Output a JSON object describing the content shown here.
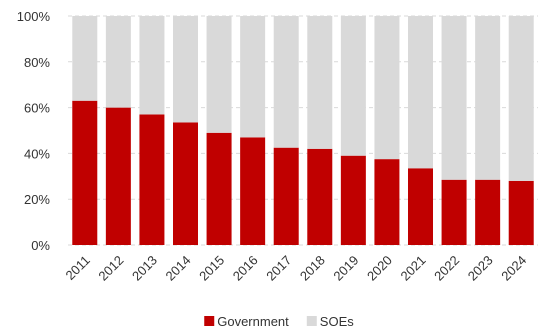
{
  "chart_data": {
    "type": "bar",
    "stacked": true,
    "title": "",
    "xlabel": "",
    "ylabel": "",
    "ylim": [
      0,
      100
    ],
    "y_ticks": [
      "0%",
      "20%",
      "40%",
      "60%",
      "80%",
      "100%"
    ],
    "y_tick_values": [
      0,
      20,
      40,
      60,
      80,
      100
    ],
    "categories": [
      "2011",
      "2012",
      "2013",
      "2014",
      "2015",
      "2016",
      "2017",
      "2018",
      "2019",
      "2020",
      "2021",
      "2022",
      "2023",
      "2024"
    ],
    "series": [
      {
        "name": "Government",
        "color": "#c00000",
        "values": [
          63,
          60,
          57,
          53.5,
          49,
          47,
          42.5,
          42,
          39,
          37.5,
          33.5,
          28.5,
          28.5,
          28
        ]
      },
      {
        "name": "SOEs",
        "color": "#d9d9d9",
        "values": [
          37,
          40,
          43,
          46.5,
          51,
          53,
          57.5,
          58,
          61,
          62.5,
          66.5,
          71.5,
          71.5,
          72
        ]
      }
    ],
    "grid": true,
    "legend_position": "bottom"
  }
}
